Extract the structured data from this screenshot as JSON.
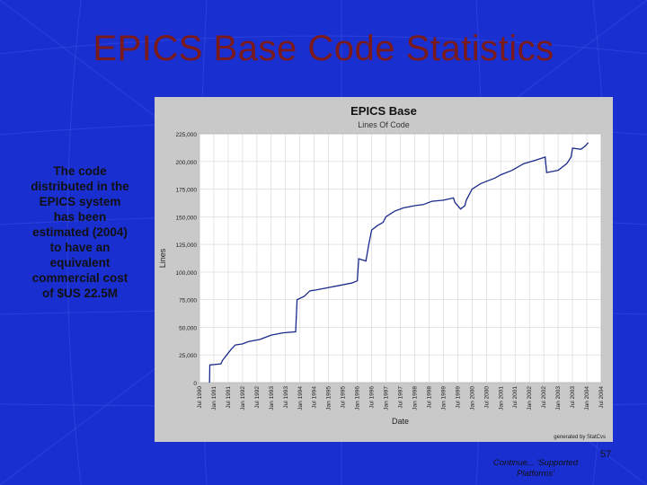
{
  "slide": {
    "title": "EPICS Base Code Statistics",
    "side_text_lines": [
      "The code",
      "distributed in the",
      "EPICS system",
      "has been",
      "estimated (2004)",
      "to have an",
      "equivalent",
      "commercial cost",
      "of $US 22.5M"
    ],
    "page_number": "57",
    "footer_lines": [
      "Continue... 'Supported",
      "Platforms'"
    ]
  },
  "colors": {
    "background": "#1a2fd0",
    "title": "#7a1a1a",
    "series": "#1a2a8a"
  },
  "chart_data": {
    "type": "line",
    "title": "EPICS Base",
    "subtitle": "Lines Of Code",
    "xlabel": "Date",
    "ylabel": "Lines",
    "credit": "generated by StatCvs",
    "ylim": [
      0,
      225000
    ],
    "yticks": [
      0,
      25000,
      50000,
      75000,
      100000,
      125000,
      150000,
      175000,
      200000,
      225000
    ],
    "ytick_labels": [
      "0",
      "25,000",
      "50,000",
      "75,000",
      "100,000",
      "125,000",
      "150,000",
      "175,000",
      "200,000",
      "225,000"
    ],
    "xlim": [
      1990.5,
      2004.5
    ],
    "xticks": [
      1990.5,
      1991,
      1991.5,
      1992,
      1992.5,
      1993,
      1993.5,
      1994,
      1994.5,
      1995,
      1995.5,
      1996,
      1996.5,
      1997,
      1997.5,
      1998,
      1998.5,
      1999,
      1999.5,
      2000,
      2000.5,
      2001,
      2001.5,
      2002,
      2002.5,
      2003,
      2003.5,
      2004,
      2004.5
    ],
    "xtick_labels": [
      "Jul 1990",
      "Jan 1991",
      "Jul 1991",
      "Jan 1992",
      "Jul 1992",
      "Jan 1993",
      "Jul 1993",
      "Jan 1994",
      "Jul 1994",
      "Jan 1995",
      "Jul 1995",
      "Jan 1996",
      "Jul 1996",
      "Jan 1997",
      "Jul 1997",
      "Jan 1998",
      "Jul 1998",
      "Jan 1999",
      "Jul 1999",
      "Jan 2000",
      "Jul 2000",
      "Jan 2001",
      "Jul 2001",
      "Jan 2002",
      "Jul 2002",
      "Jan 2003",
      "Jul 2003",
      "Jan 2004",
      "Jul 2004"
    ],
    "grid": true,
    "series": [
      {
        "points": [
          [
            1990.85,
            0
          ],
          [
            1990.86,
            16000
          ],
          [
            1991.25,
            17000
          ],
          [
            1991.3,
            20000
          ],
          [
            1991.45,
            25000
          ],
          [
            1991.6,
            30000
          ],
          [
            1991.75,
            34000
          ],
          [
            1992.0,
            35000
          ],
          [
            1992.2,
            37000
          ],
          [
            1992.6,
            39000
          ],
          [
            1993.0,
            43000
          ],
          [
            1993.4,
            45000
          ],
          [
            1993.85,
            46000
          ],
          [
            1993.9,
            75000
          ],
          [
            1994.15,
            78000
          ],
          [
            1994.35,
            83000
          ],
          [
            1994.6,
            84000
          ],
          [
            1995.0,
            86000
          ],
          [
            1995.4,
            88000
          ],
          [
            1995.8,
            90000
          ],
          [
            1996.0,
            92000
          ],
          [
            1996.05,
            112000
          ],
          [
            1996.3,
            110000
          ],
          [
            1996.4,
            125000
          ],
          [
            1996.5,
            138000
          ],
          [
            1996.7,
            142000
          ],
          [
            1996.9,
            145000
          ],
          [
            1997.0,
            150000
          ],
          [
            1997.3,
            155000
          ],
          [
            1997.6,
            158000
          ],
          [
            1998.0,
            160000
          ],
          [
            1998.3,
            161000
          ],
          [
            1998.6,
            164000
          ],
          [
            1999.0,
            165000
          ],
          [
            1999.35,
            167000
          ],
          [
            1999.4,
            163000
          ],
          [
            1999.6,
            157000
          ],
          [
            1999.75,
            160000
          ],
          [
            1999.8,
            165000
          ],
          [
            2000.0,
            175000
          ],
          [
            2000.3,
            180000
          ],
          [
            2000.8,
            185000
          ],
          [
            2001.0,
            188000
          ],
          [
            2001.4,
            192000
          ],
          [
            2001.8,
            198000
          ],
          [
            2002.2,
            201000
          ],
          [
            2002.55,
            204000
          ],
          [
            2002.6,
            190000
          ],
          [
            2003.0,
            192000
          ],
          [
            2003.3,
            198000
          ],
          [
            2003.45,
            204000
          ],
          [
            2003.5,
            212000
          ],
          [
            2003.8,
            211000
          ],
          [
            2003.95,
            214000
          ],
          [
            2004.05,
            217000
          ]
        ]
      }
    ]
  }
}
